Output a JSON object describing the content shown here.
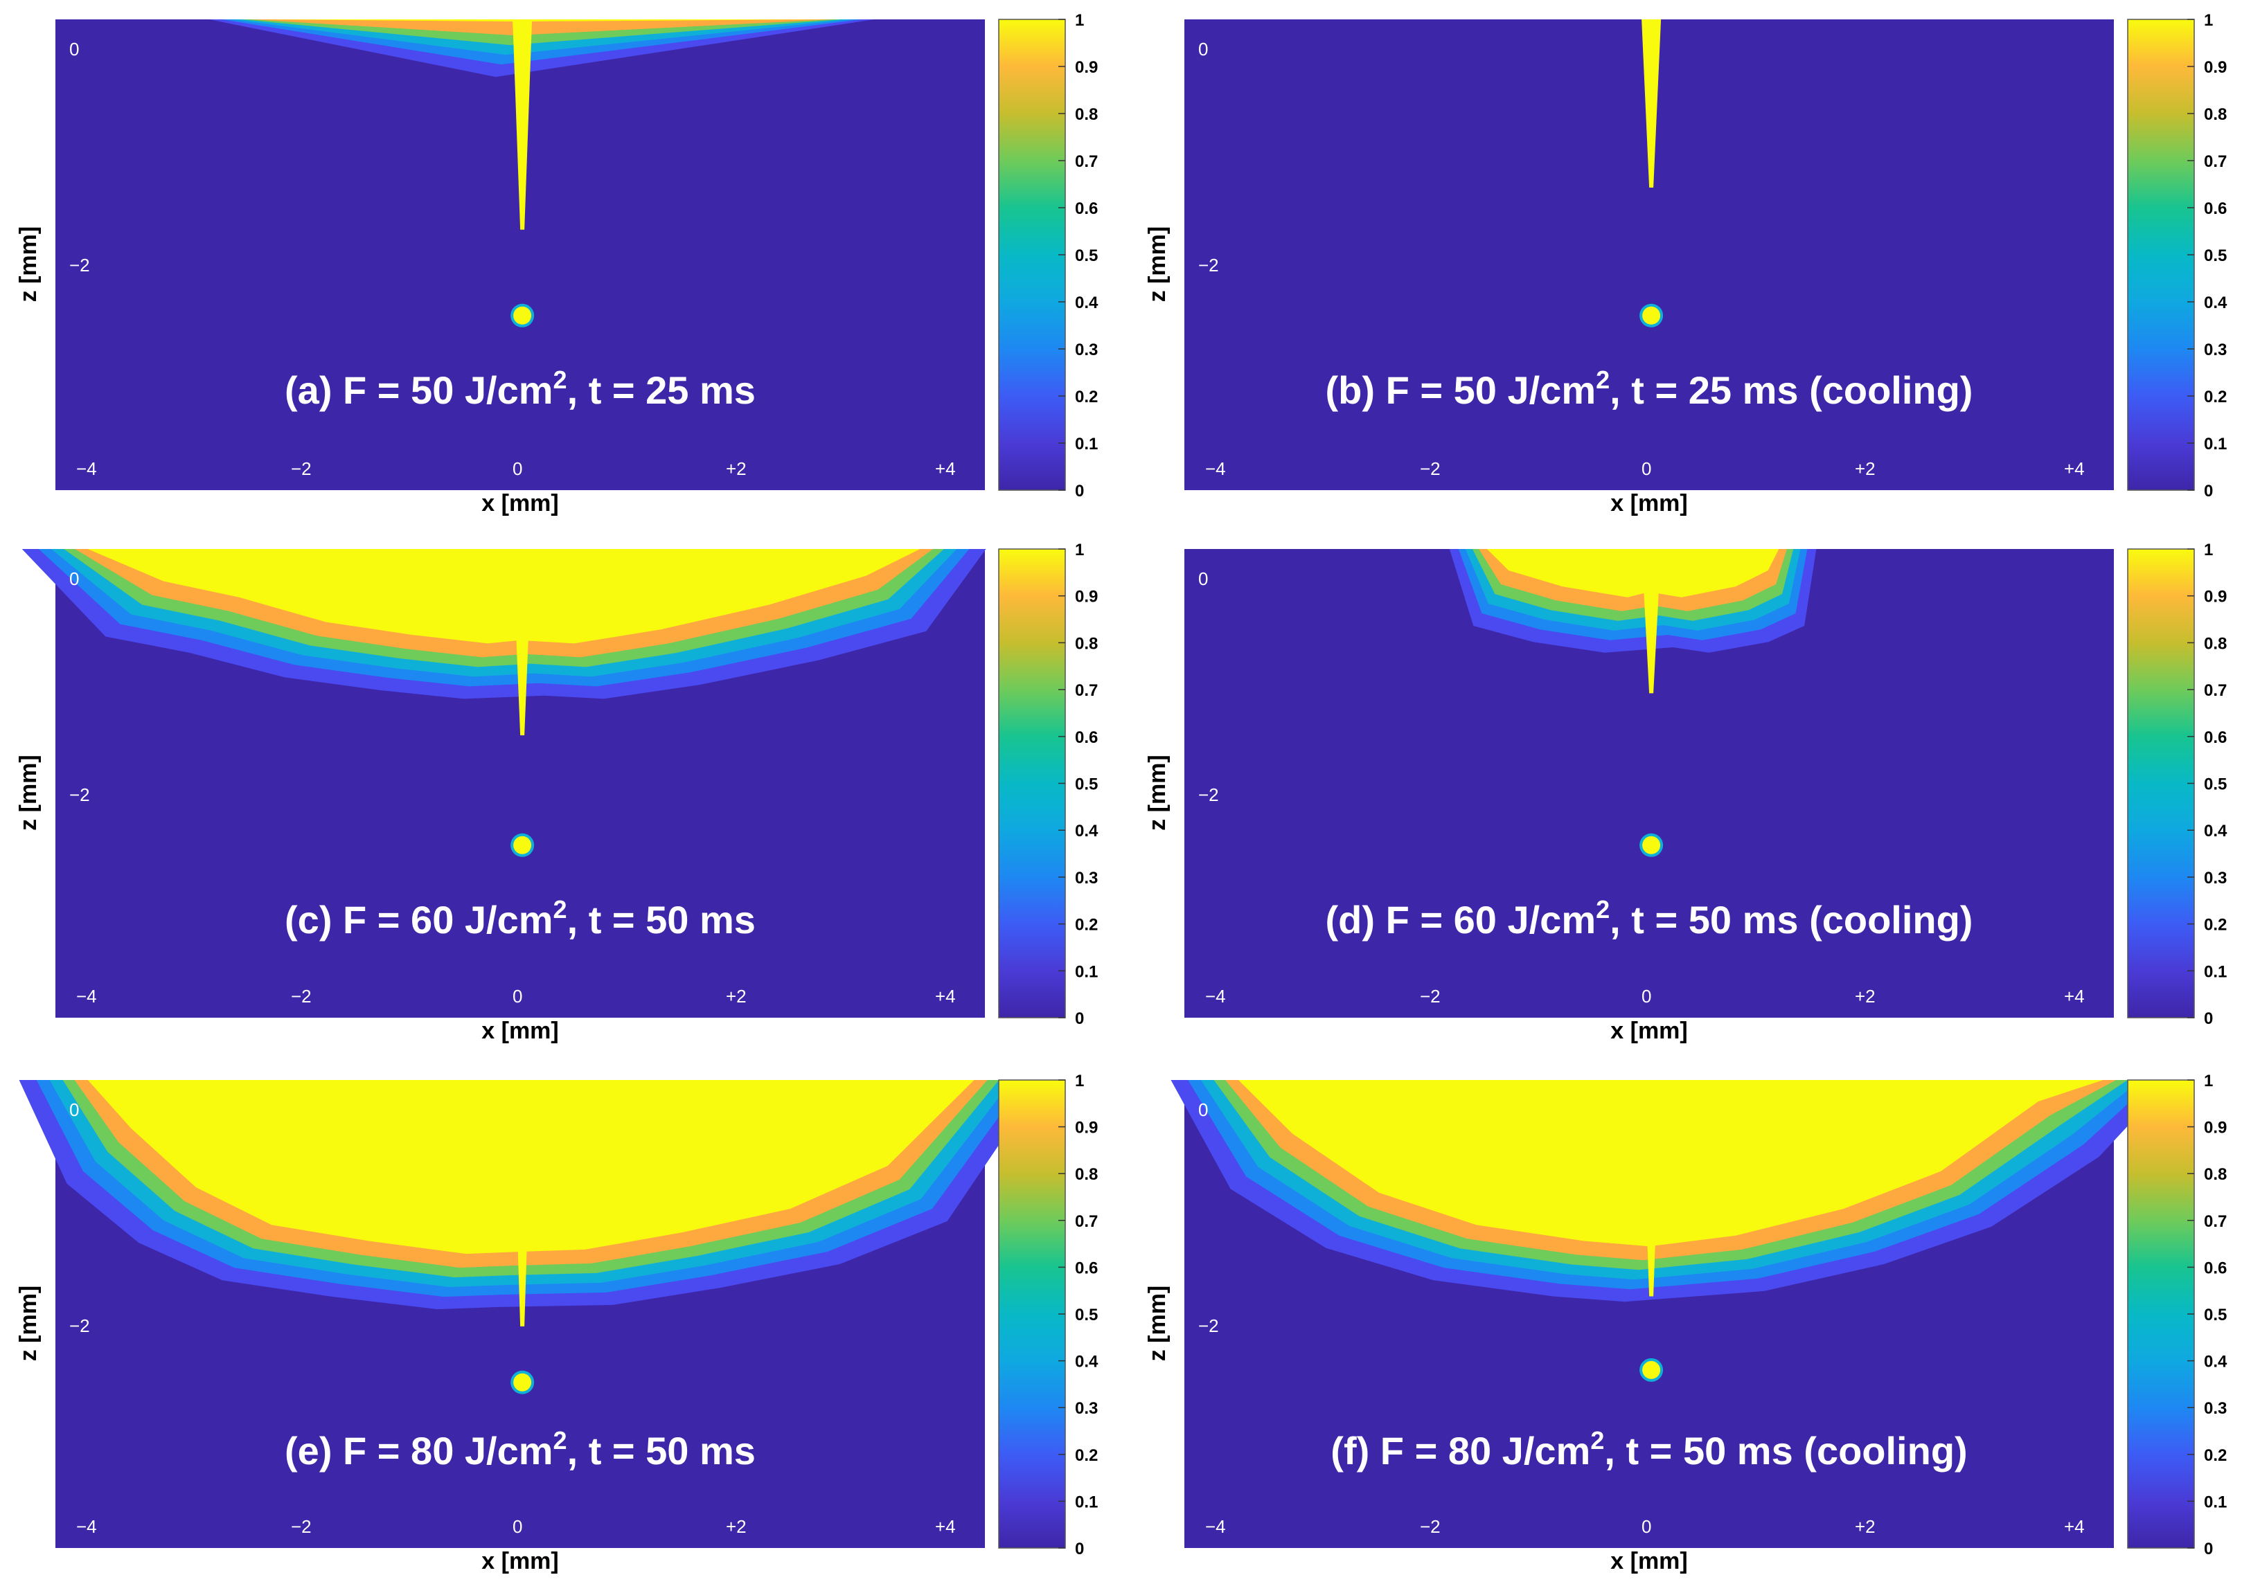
{
  "chart_data": {
    "type": "heatmap",
    "colormap": [
      "#3e26a8",
      "#4a4af0",
      "#1e88f2",
      "#0fb0d8",
      "#18c490",
      "#6fcb5a",
      "#c6be2e",
      "#fda93f",
      "#f6d92c",
      "#f9fb0e"
    ],
    "colorbar": {
      "min": 0,
      "max": 1,
      "ticks": [
        "0",
        "0.1",
        "0.2",
        "0.3",
        "0.4",
        "0.5",
        "0.6",
        "0.7",
        "0.8",
        "0.9",
        "1"
      ]
    },
    "xlabel": "x [mm]",
    "ylabel": "z [mm]",
    "x_ticks": [
      "−4",
      "−2",
      "0",
      "+2",
      "+4"
    ],
    "y_ticks": [
      "0",
      "−2"
    ],
    "panels": [
      {
        "id": "a",
        "label_pre": "(a) F = 50 J/cm",
        "label_sup": "2",
        "label_post": ", t = 25 ms",
        "fluence_J_cm2": 50,
        "time_ms": 25,
        "cooling": false,
        "melt_profile": [
          [
            -2.4,
            0
          ],
          [
            0,
            0.02
          ],
          [
            2.8,
            0
          ]
        ],
        "keyhole_depth_mm": 1.75,
        "droplet_depth_mm": 2.4
      },
      {
        "id": "b",
        "label_pre": "(b) F = 50 J/cm",
        "label_sup": "2",
        "label_post": ", t = 25 ms (cooling)",
        "fluence_J_cm2": 50,
        "time_ms": 25,
        "cooling": true,
        "melt_profile": [],
        "keyhole_depth_mm": 1.4,
        "droplet_depth_mm": 2.4
      },
      {
        "id": "c",
        "label_pre": "(c) F = 60 J/cm",
        "label_sup": "2",
        "label_post": ", t = 50 ms",
        "fluence_J_cm2": 60,
        "time_ms": 50,
        "cooling": false,
        "melt_profile": [
          [
            -4,
            0
          ],
          [
            -3.3,
            0.3
          ],
          [
            -2.6,
            0.45
          ],
          [
            -1.8,
            0.68
          ],
          [
            -1,
            0.8
          ],
          [
            -0.3,
            0.88
          ],
          [
            0,
            0.85
          ],
          [
            0.5,
            0.88
          ],
          [
            1.3,
            0.75
          ],
          [
            2.3,
            0.52
          ],
          [
            3.2,
            0.25
          ],
          [
            3.7,
            0
          ]
        ],
        "keyhole_depth_mm": 1.55,
        "droplet_depth_mm": 2.4
      },
      {
        "id": "d",
        "label_pre": "(d) F = 60 J/cm",
        "label_sup": "2",
        "label_post": ", t = 50 ms (cooling)",
        "fluence_J_cm2": 60,
        "time_ms": 50,
        "cooling": true,
        "melt_profile": [
          [
            -1.5,
            0
          ],
          [
            -1.3,
            0.2
          ],
          [
            -0.8,
            0.35
          ],
          [
            -0.2,
            0.45
          ],
          [
            0,
            0.4
          ],
          [
            0.3,
            0.45
          ],
          [
            0.8,
            0.35
          ],
          [
            1.1,
            0.2
          ],
          [
            1.2,
            0
          ]
        ],
        "keyhole_depth_mm": 1.2,
        "droplet_depth_mm": 2.4
      },
      {
        "id": "e",
        "label_pre": "(e) F = 80 J/cm",
        "label_sup": "2",
        "label_post": ", t = 50 ms",
        "fluence_J_cm2": 80,
        "time_ms": 50,
        "cooling": false,
        "melt_profile": [
          [
            -4,
            0
          ],
          [
            -3.6,
            0.45
          ],
          [
            -3,
            1.0
          ],
          [
            -2.3,
            1.35
          ],
          [
            -1.4,
            1.5
          ],
          [
            -0.5,
            1.62
          ],
          [
            0,
            1.6
          ],
          [
            0.6,
            1.58
          ],
          [
            1.5,
            1.42
          ],
          [
            2.5,
            1.2
          ],
          [
            3.4,
            0.8
          ],
          [
            4.2,
            0
          ]
        ],
        "keyhole_depth_mm": 2.05,
        "droplet_depth_mm": 2.45
      },
      {
        "id": "f",
        "label_pre": "(f) F = 80 J/cm",
        "label_sup": "2",
        "label_post": ", t = 50 ms (cooling)",
        "fluence_J_cm2": 80,
        "time_ms": 50,
        "cooling": true,
        "melt_profile": [
          [
            -3.8,
            0
          ],
          [
            -3.3,
            0.5
          ],
          [
            -2.5,
            1.05
          ],
          [
            -1.6,
            1.35
          ],
          [
            -0.6,
            1.5
          ],
          [
            0,
            1.55
          ],
          [
            0.8,
            1.45
          ],
          [
            1.8,
            1.2
          ],
          [
            2.7,
            0.85
          ],
          [
            3.6,
            0.2
          ],
          [
            4.2,
            0
          ]
        ],
        "keyhole_depth_mm": 1.8,
        "droplet_depth_mm": 2.35
      }
    ]
  }
}
